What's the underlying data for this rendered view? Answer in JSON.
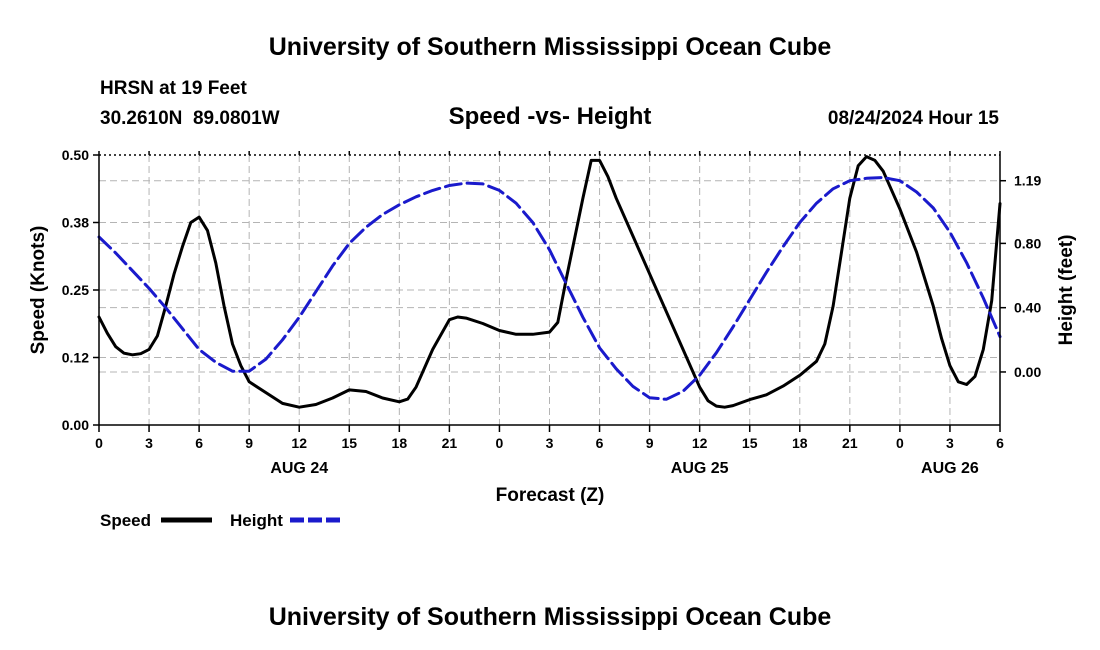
{
  "header": {
    "title": "University of Southern Mississippi Ocean Cube",
    "station": "HRSN at 19 Feet",
    "coords": "30.2610N  89.0801W",
    "subtitle": "Speed -vs- Height",
    "timestamp": "08/24/2024 Hour 15"
  },
  "footer": {
    "title": "University of Southern Mississippi Ocean Cube"
  },
  "legend": {
    "speed_label": "Speed",
    "height_label": "Height"
  },
  "colors": {
    "speed": "#000000",
    "height": "#1a1acc",
    "grid": "#b4b4b4"
  },
  "chart_data": {
    "type": "line",
    "title": "Speed -vs- Height",
    "xlabel": "Forecast (Z)",
    "ylabel": "Speed (Knots)",
    "y2label": "Height (feet)",
    "x_range_hours": [
      0,
      54
    ],
    "x_ticks": [
      {
        "h": 0,
        "label": "0"
      },
      {
        "h": 3,
        "label": "3"
      },
      {
        "h": 6,
        "label": "6"
      },
      {
        "h": 9,
        "label": "9"
      },
      {
        "h": 12,
        "label": "12"
      },
      {
        "h": 15,
        "label": "15"
      },
      {
        "h": 18,
        "label": "18"
      },
      {
        "h": 21,
        "label": "21"
      },
      {
        "h": 24,
        "label": "0"
      },
      {
        "h": 27,
        "label": "3"
      },
      {
        "h": 30,
        "label": "6"
      },
      {
        "h": 33,
        "label": "9"
      },
      {
        "h": 36,
        "label": "12"
      },
      {
        "h": 39,
        "label": "15"
      },
      {
        "h": 42,
        "label": "18"
      },
      {
        "h": 45,
        "label": "21"
      },
      {
        "h": 48,
        "label": "0"
      },
      {
        "h": 51,
        "label": "3"
      },
      {
        "h": 54,
        "label": "6"
      }
    ],
    "date_labels": [
      {
        "h": 12,
        "label": "AUG 24"
      },
      {
        "h": 36,
        "label": "AUG 25"
      },
      {
        "h": 51,
        "label": "AUG 26"
      }
    ],
    "ylim": [
      0,
      0.5
    ],
    "y_ticks": [
      {
        "v": 0.0,
        "label": "0.00"
      },
      {
        "v": 0.125,
        "label": "0.12"
      },
      {
        "v": 0.25,
        "label": "0.25"
      },
      {
        "v": 0.375,
        "label": "0.38"
      },
      {
        "v": 0.5,
        "label": "0.50"
      }
    ],
    "y2lim": [
      -0.33,
      1.35
    ],
    "y2_ticks": [
      {
        "v": 0.0,
        "label": "0.00"
      },
      {
        "v": 0.4,
        "label": "0.40"
      },
      {
        "v": 0.8,
        "label": "0.80"
      },
      {
        "v": 1.19,
        "label": "1.19"
      }
    ],
    "series": [
      {
        "name": "Speed",
        "axis": "left",
        "style": "solid",
        "points": [
          [
            0,
            0.2
          ],
          [
            0.5,
            0.17
          ],
          [
            1,
            0.145
          ],
          [
            1.5,
            0.133
          ],
          [
            2,
            0.13
          ],
          [
            2.5,
            0.132
          ],
          [
            3,
            0.14
          ],
          [
            3.5,
            0.165
          ],
          [
            4,
            0.22
          ],
          [
            4.5,
            0.28
          ],
          [
            5,
            0.33
          ],
          [
            5.5,
            0.375
          ],
          [
            6,
            0.385
          ],
          [
            6.5,
            0.36
          ],
          [
            7,
            0.3
          ],
          [
            7.5,
            0.22
          ],
          [
            8,
            0.15
          ],
          [
            8.5,
            0.11
          ],
          [
            9,
            0.08
          ],
          [
            10,
            0.06
          ],
          [
            11,
            0.04
          ],
          [
            12,
            0.033
          ],
          [
            13,
            0.038
          ],
          [
            14,
            0.05
          ],
          [
            15,
            0.065
          ],
          [
            16,
            0.062
          ],
          [
            17,
            0.05
          ],
          [
            18,
            0.043
          ],
          [
            18.5,
            0.048
          ],
          [
            19,
            0.07
          ],
          [
            20,
            0.14
          ],
          [
            21,
            0.195
          ],
          [
            21.5,
            0.2
          ],
          [
            22,
            0.198
          ],
          [
            23,
            0.188
          ],
          [
            24,
            0.175
          ],
          [
            25,
            0.168
          ],
          [
            26,
            0.168
          ],
          [
            27,
            0.172
          ],
          [
            27.5,
            0.19
          ],
          [
            28,
            0.27
          ],
          [
            29,
            0.42
          ],
          [
            29.5,
            0.49
          ],
          [
            30,
            0.49
          ],
          [
            30.5,
            0.46
          ],
          [
            31,
            0.42
          ],
          [
            33,
            0.28
          ],
          [
            35,
            0.14
          ],
          [
            36,
            0.07
          ],
          [
            36.5,
            0.045
          ],
          [
            37,
            0.035
          ],
          [
            37.5,
            0.033
          ],
          [
            38,
            0.036
          ],
          [
            39,
            0.047
          ],
          [
            40,
            0.056
          ],
          [
            41,
            0.072
          ],
          [
            42,
            0.092
          ],
          [
            43,
            0.118
          ],
          [
            43.5,
            0.15
          ],
          [
            44,
            0.22
          ],
          [
            44.5,
            0.32
          ],
          [
            45,
            0.42
          ],
          [
            45.5,
            0.48
          ],
          [
            46,
            0.497
          ],
          [
            46.5,
            0.49
          ],
          [
            47,
            0.47
          ],
          [
            48,
            0.4
          ],
          [
            49,
            0.32
          ],
          [
            50,
            0.22
          ],
          [
            50.5,
            0.16
          ],
          [
            51,
            0.11
          ],
          [
            51.5,
            0.08
          ],
          [
            52,
            0.075
          ],
          [
            52.5,
            0.09
          ],
          [
            53,
            0.14
          ],
          [
            53.5,
            0.23
          ],
          [
            54,
            0.41
          ]
        ]
      },
      {
        "name": "Height",
        "axis": "right",
        "style": "dashed",
        "points": [
          [
            0,
            0.84
          ],
          [
            1,
            0.74
          ],
          [
            2,
            0.63
          ],
          [
            3,
            0.52
          ],
          [
            4,
            0.4
          ],
          [
            5,
            0.27
          ],
          [
            6,
            0.14
          ],
          [
            7,
            0.06
          ],
          [
            8,
            0.005
          ],
          [
            9,
            0.005
          ],
          [
            10,
            0.08
          ],
          [
            11,
            0.2
          ],
          [
            12,
            0.34
          ],
          [
            13,
            0.5
          ],
          [
            14,
            0.66
          ],
          [
            15,
            0.8
          ],
          [
            16,
            0.9
          ],
          [
            17,
            0.98
          ],
          [
            18,
            1.04
          ],
          [
            19,
            1.09
          ],
          [
            20,
            1.13
          ],
          [
            21,
            1.16
          ],
          [
            22,
            1.175
          ],
          [
            23,
            1.17
          ],
          [
            24,
            1.13
          ],
          [
            25,
            1.05
          ],
          [
            26,
            0.93
          ],
          [
            27,
            0.76
          ],
          [
            28,
            0.55
          ],
          [
            29,
            0.34
          ],
          [
            30,
            0.15
          ],
          [
            31,
            0.02
          ],
          [
            32,
            -0.09
          ],
          [
            33,
            -0.16
          ],
          [
            34,
            -0.17
          ],
          [
            35,
            -0.12
          ],
          [
            36,
            -0.02
          ],
          [
            37,
            0.12
          ],
          [
            38,
            0.28
          ],
          [
            39,
            0.45
          ],
          [
            40,
            0.62
          ],
          [
            41,
            0.78
          ],
          [
            42,
            0.93
          ],
          [
            43,
            1.05
          ],
          [
            44,
            1.14
          ],
          [
            45,
            1.19
          ],
          [
            46,
            1.205
          ],
          [
            47,
            1.21
          ],
          [
            48,
            1.19
          ],
          [
            49,
            1.12
          ],
          [
            50,
            1.02
          ],
          [
            51,
            0.87
          ],
          [
            52,
            0.68
          ],
          [
            53,
            0.46
          ],
          [
            54,
            0.22
          ]
        ]
      }
    ]
  }
}
